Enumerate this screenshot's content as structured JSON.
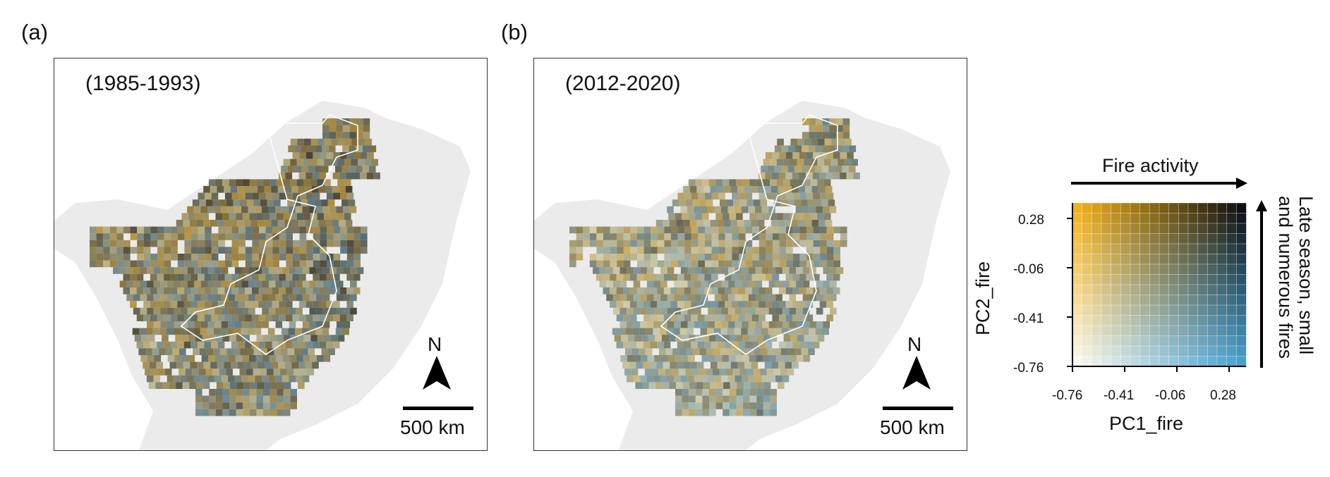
{
  "panels": [
    {
      "letter": "(a)",
      "period": "(1985-1993)",
      "north": "N",
      "scale": "500 km"
    },
    {
      "letter": "(b)",
      "period": "(2012-2020)",
      "north": "N",
      "scale": "500 km"
    }
  ],
  "legend": {
    "top_label": "Fire activity",
    "right_label_line1": "Late season, small",
    "right_label_line2": "and numerous fires",
    "x_title": "PC1_fire",
    "y_title": "PC2_fire",
    "x_ticks": [
      "-0.76",
      "-0.41",
      "-0.06",
      "0.28"
    ],
    "y_ticks": [
      "0.28",
      "-0.06",
      "-0.41",
      "-0.76"
    ],
    "corner_colors": {
      "low_pc1_low_pc2": "#fbf7ec",
      "high_pc1_low_pc2": "#4aa0cf",
      "low_pc1_high_pc2": "#f2b21c",
      "high_pc1_high_pc2": "#0f0f0f"
    }
  },
  "colors": {
    "land": "#ebebeb",
    "frame": "#333333",
    "region_outline": "#ffffff"
  }
}
